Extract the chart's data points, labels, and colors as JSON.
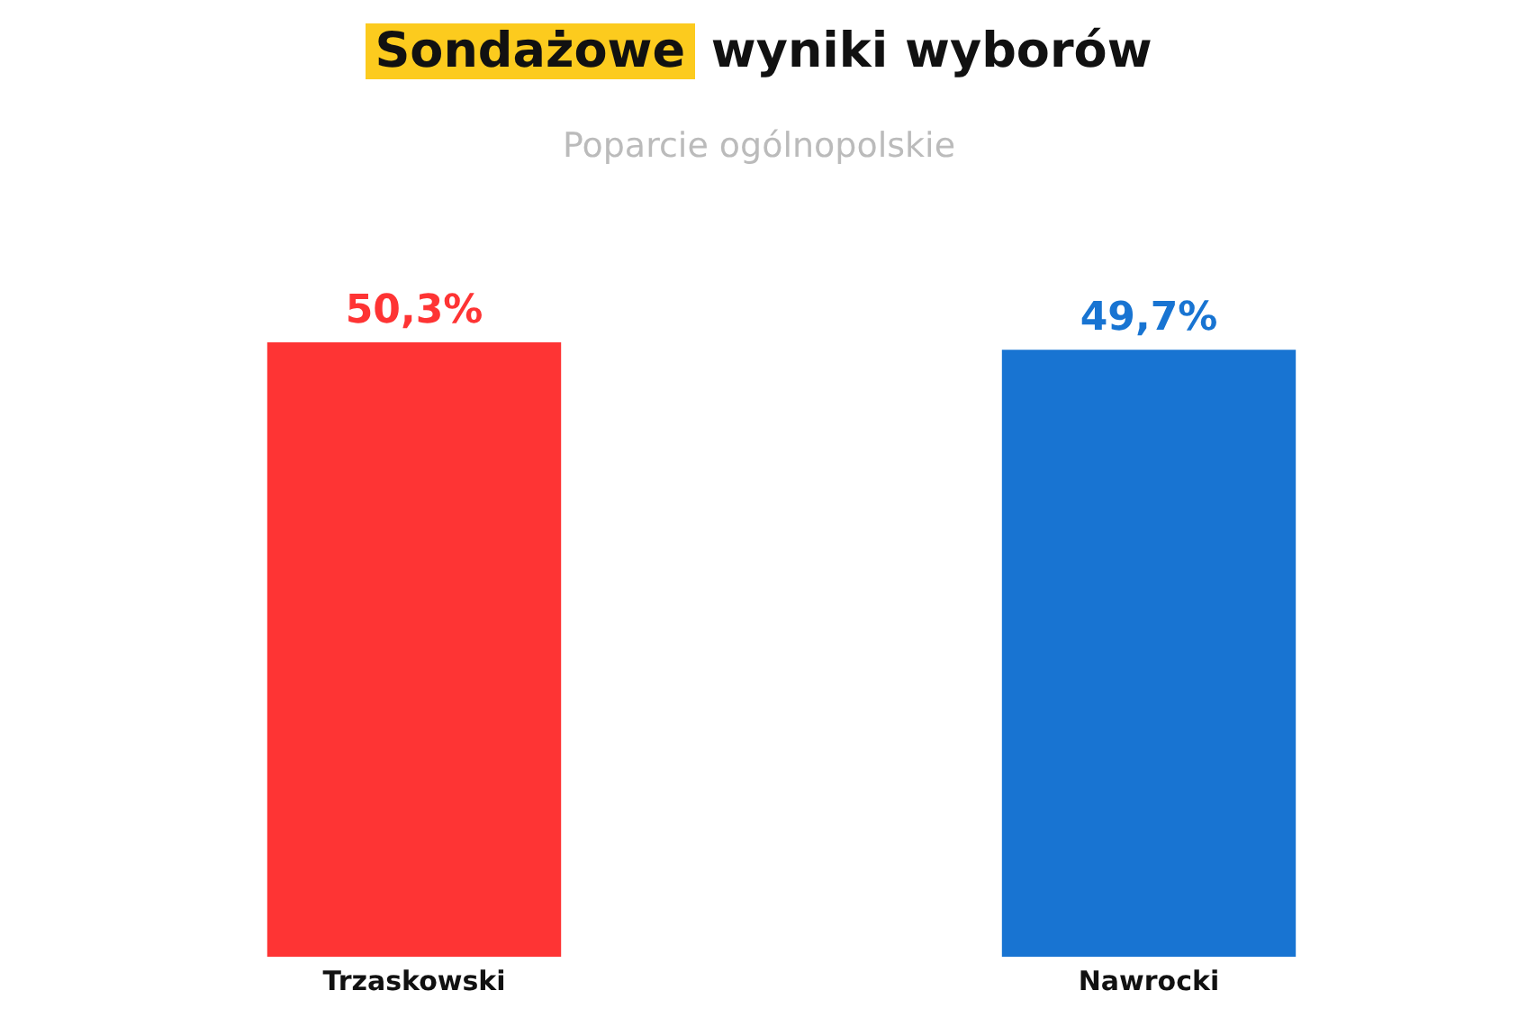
{
  "chart_data": {
    "type": "bar",
    "title": "Sondażowe wyniki wyborów",
    "subtitle": "Poparcie ogólnopolskie",
    "categories": [
      "Trzaskowski",
      "Nawrocki"
    ],
    "values": [
      50.3,
      49.7
    ],
    "colors": [
      "#fe3434",
      "#1874d2"
    ],
    "value_labels": [
      "50,3%",
      "49,7%"
    ],
    "tick_labels": "x"
  }
}
